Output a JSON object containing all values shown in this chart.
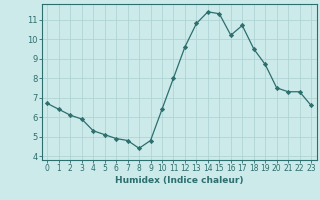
{
  "x": [
    0,
    1,
    2,
    3,
    4,
    5,
    6,
    7,
    8,
    9,
    10,
    11,
    12,
    13,
    14,
    15,
    16,
    17,
    18,
    19,
    20,
    21,
    22,
    23
  ],
  "y": [
    6.7,
    6.4,
    6.1,
    5.9,
    5.3,
    5.1,
    4.9,
    4.8,
    4.4,
    4.8,
    6.4,
    8.0,
    9.6,
    10.8,
    11.4,
    11.3,
    10.2,
    10.7,
    9.5,
    8.7,
    7.5,
    7.3,
    7.3,
    6.6
  ],
  "line_color": "#2d6e6e",
  "marker": "D",
  "marker_size": 2.2,
  "bg_color": "#cceaea",
  "grid_color": "#b0d4d4",
  "xlabel": "Humidex (Indice chaleur)",
  "xlim": [
    -0.5,
    23.5
  ],
  "ylim": [
    3.8,
    11.8
  ],
  "yticks": [
    4,
    5,
    6,
    7,
    8,
    9,
    10,
    11
  ],
  "xticks": [
    0,
    1,
    2,
    3,
    4,
    5,
    6,
    7,
    8,
    9,
    10,
    11,
    12,
    13,
    14,
    15,
    16,
    17,
    18,
    19,
    20,
    21,
    22,
    23
  ],
  "tick_color": "#2d6e6e",
  "xlabel_fontsize": 6.5,
  "ytick_fontsize": 6,
  "xtick_fontsize": 5.5
}
